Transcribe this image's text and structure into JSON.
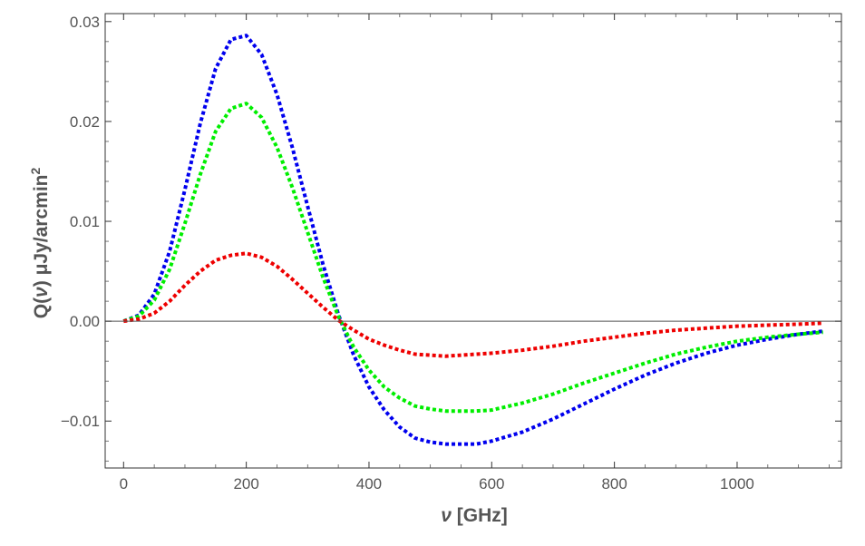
{
  "chart_data": {
    "type": "line",
    "title": "",
    "xlabel": "ν [GHz]",
    "xlabel_symbol": "ν",
    "xlabel_unit": " [GHz]",
    "ylabel": "Q(ν) μJy/arcmin²",
    "ylabel_prefix": "Q(",
    "ylabel_symbol": "ν",
    "ylabel_mid": ") μJy/arcmin",
    "ylabel_sup": "2",
    "xlim": [
      -30,
      1170
    ],
    "ylim": [
      -0.0147,
      0.0308
    ],
    "x_ticks": [
      0,
      200,
      400,
      600,
      800,
      1000
    ],
    "x_tick_labels": [
      "0",
      "200",
      "400",
      "600",
      "800",
      "1000"
    ],
    "y_ticks": [
      -0.01,
      0.0,
      0.01,
      0.02,
      0.03
    ],
    "y_tick_labels": [
      "−0.01",
      "0.00",
      "0.01",
      "0.02",
      "0.03"
    ],
    "grid": false,
    "frame": true,
    "line_style": "dotted",
    "x": [
      0,
      25,
      50,
      75,
      100,
      125,
      150,
      175,
      200,
      225,
      250,
      275,
      300,
      325,
      350,
      375,
      400,
      425,
      450,
      475,
      500,
      525,
      550,
      575,
      600,
      650,
      700,
      750,
      800,
      850,
      900,
      950,
      1000,
      1050,
      1100,
      1140
    ],
    "series": [
      {
        "color": "#0000ee",
        "values": [
          0.0,
          0.0006,
          0.0027,
          0.007,
          0.0132,
          0.0198,
          0.0253,
          0.0282,
          0.0286,
          0.0267,
          0.0227,
          0.0174,
          0.0115,
          0.0057,
          0.0007,
          -0.0034,
          -0.0066,
          -0.0089,
          -0.0106,
          -0.0117,
          -0.0121,
          -0.0123,
          -0.0123,
          -0.0123,
          -0.012,
          -0.0111,
          -0.0098,
          -0.0083,
          -0.0068,
          -0.0054,
          -0.0042,
          -0.0032,
          -0.0024,
          -0.0018,
          -0.0013,
          -0.001
        ]
      },
      {
        "color": "#00ee00",
        "values": [
          0.0,
          0.0005,
          0.0021,
          0.0052,
          0.0098,
          0.0147,
          0.019,
          0.0213,
          0.0218,
          0.0204,
          0.0174,
          0.0134,
          0.0089,
          0.0044,
          0.0005,
          -0.0026,
          -0.0049,
          -0.0066,
          -0.0077,
          -0.0085,
          -0.0088,
          -0.009,
          -0.009,
          -0.009,
          -0.0089,
          -0.0082,
          -0.0073,
          -0.0062,
          -0.0052,
          -0.0042,
          -0.0033,
          -0.0026,
          -0.002,
          -0.0016,
          -0.0013,
          -0.0011
        ]
      },
      {
        "color": "#ee0000",
        "values": [
          0.0,
          0.0002,
          0.0008,
          0.002,
          0.0036,
          0.005,
          0.0061,
          0.0066,
          0.0068,
          0.0064,
          0.0055,
          0.0042,
          0.0028,
          0.0014,
          0.0001,
          -0.0009,
          -0.0018,
          -0.0024,
          -0.0029,
          -0.0033,
          -0.0034,
          -0.0035,
          -0.0034,
          -0.0033,
          -0.0032,
          -0.0029,
          -0.0025,
          -0.002,
          -0.0016,
          -0.0012,
          -0.0009,
          -0.0007,
          -0.0005,
          -0.0004,
          -0.0003,
          -0.0002
        ]
      }
    ]
  }
}
